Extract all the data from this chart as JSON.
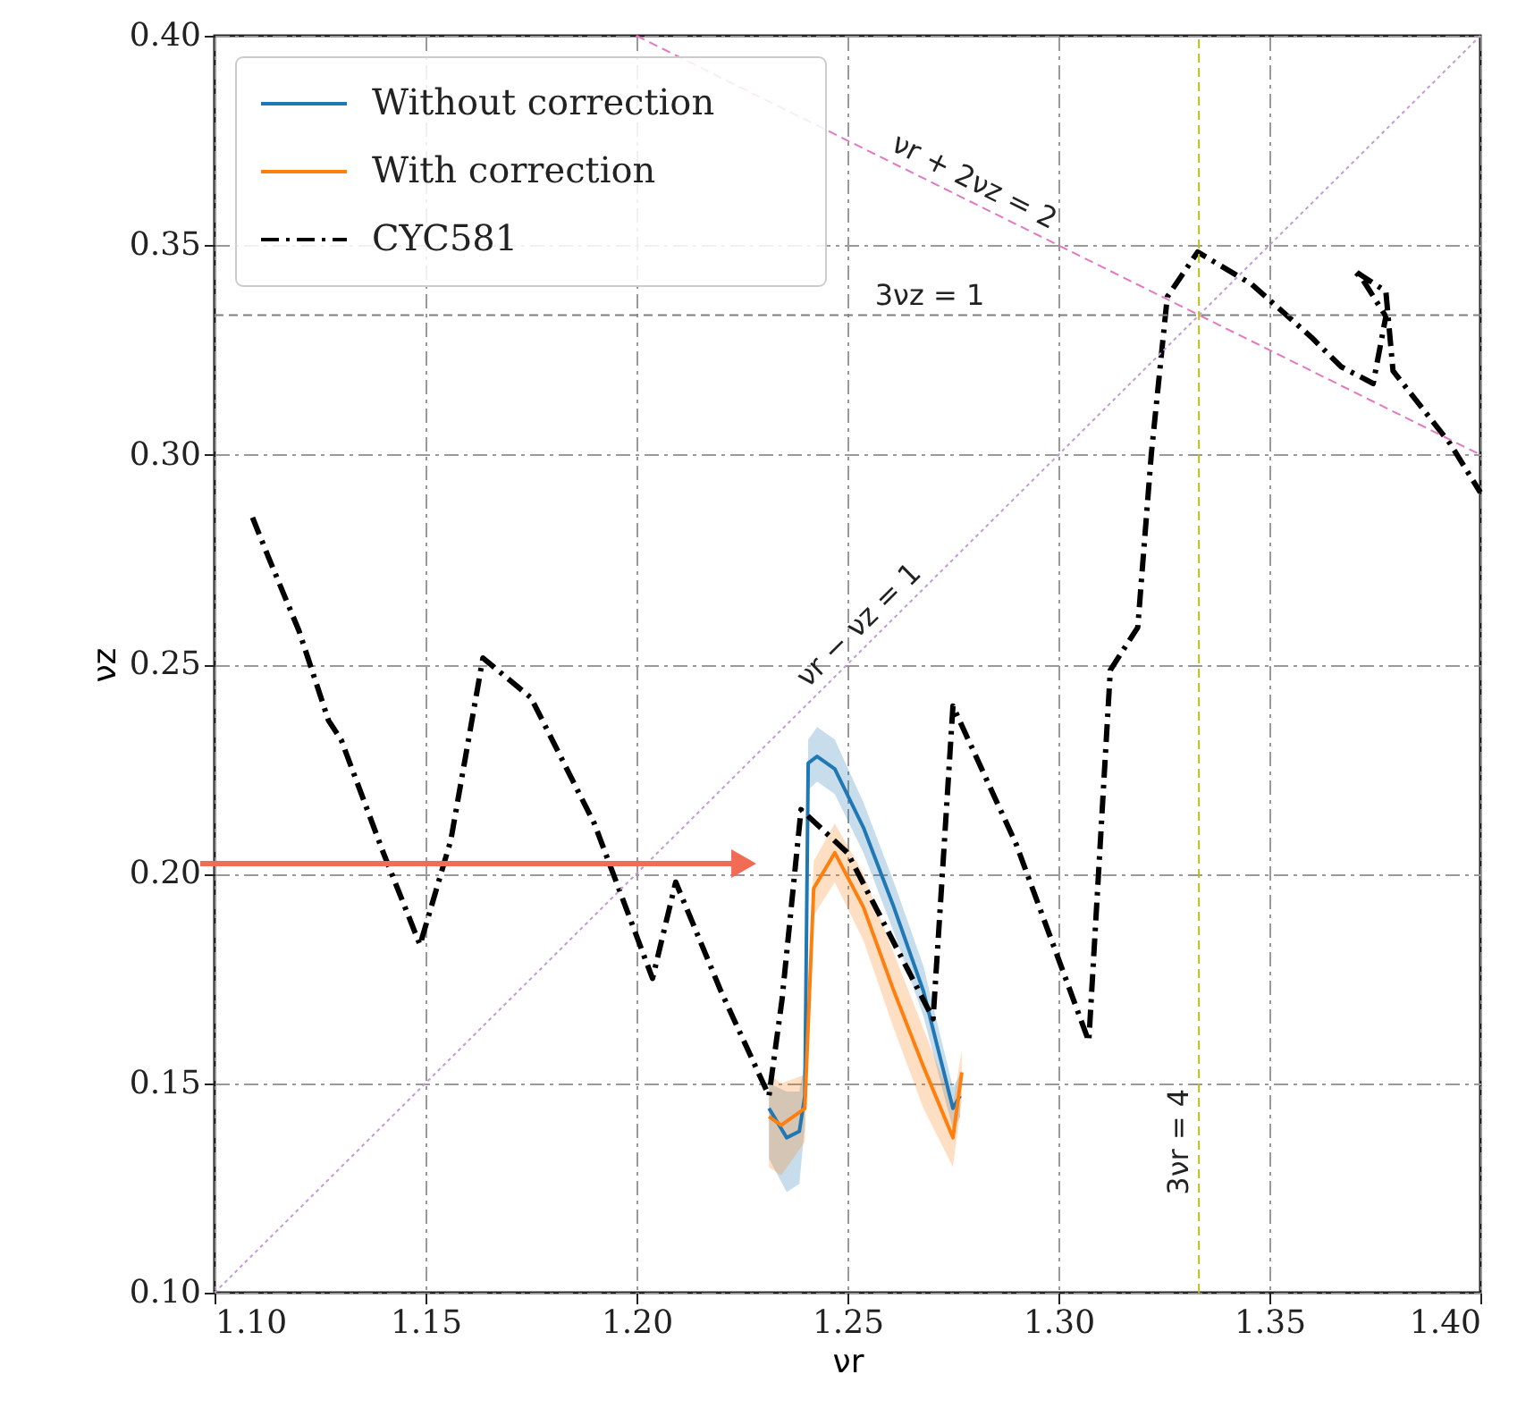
{
  "chart_data": {
    "type": "line",
    "xlabel": "νr",
    "ylabel": "νz",
    "xlim": [
      1.1,
      1.4
    ],
    "ylim": [
      0.1,
      0.4
    ],
    "xticks": [
      {
        "value": 1.1,
        "label": "1.10"
      },
      {
        "value": 1.15,
        "label": "1.15"
      },
      {
        "value": 1.2,
        "label": "1.20"
      },
      {
        "value": 1.25,
        "label": "1.25"
      },
      {
        "value": 1.3,
        "label": "1.30"
      },
      {
        "value": 1.35,
        "label": "1.35"
      },
      {
        "value": 1.4,
        "label": "1.40"
      }
    ],
    "yticks": [
      {
        "value": 0.1,
        "label": "0.10"
      },
      {
        "value": 0.15,
        "label": "0.15"
      },
      {
        "value": 0.2,
        "label": "0.20"
      },
      {
        "value": 0.25,
        "label": "0.25"
      },
      {
        "value": 0.3,
        "label": "0.30"
      },
      {
        "value": 0.35,
        "label": "0.35"
      },
      {
        "value": 0.4,
        "label": "0.40"
      }
    ],
    "grid": true,
    "legend": "top left",
    "series": [
      {
        "name": "Without correction",
        "color": "#1f77b4",
        "line_style": "solid",
        "x": [
          1.2314,
          1.2356,
          1.2386,
          1.2399,
          1.2407,
          1.2428,
          1.247,
          1.2538,
          1.261,
          1.268,
          1.275,
          1.2767
        ],
        "values": [
          0.144,
          0.137,
          0.1385,
          0.147,
          0.2264,
          0.228,
          0.225,
          0.211,
          0.192,
          0.172,
          0.144,
          0.147
        ],
        "lower": [
          0.132,
          0.124,
          0.126,
          0.14,
          0.22,
          0.222,
          0.219,
          0.205,
          0.186,
          0.166,
          0.139,
          0.142
        ],
        "upper": [
          0.15,
          0.148,
          0.148,
          0.155,
          0.232,
          0.235,
          0.232,
          0.217,
          0.198,
          0.178,
          0.149,
          0.152
        ]
      },
      {
        "name": "With correction",
        "color": "#ff7f0e",
        "line_style": "solid",
        "x": [
          1.2314,
          1.2343,
          1.2399,
          1.242,
          1.247,
          1.2538,
          1.261,
          1.268,
          1.275,
          1.2771
        ],
        "values": [
          0.142,
          0.14,
          0.144,
          0.1965,
          0.205,
          0.192,
          0.172,
          0.154,
          0.137,
          0.1526
        ],
        "lower": [
          0.13,
          0.128,
          0.136,
          0.19,
          0.198,
          0.184,
          0.163,
          0.144,
          0.13,
          0.146
        ],
        "upper": [
          0.152,
          0.15,
          0.152,
          0.203,
          0.212,
          0.2,
          0.181,
          0.163,
          0.145,
          0.158
        ]
      },
      {
        "name": "CYC581",
        "color": "#000000",
        "line_style": "dashdot",
        "x": [
          1.109,
          1.113,
          1.12,
          1.127,
          1.13,
          1.14,
          1.1487,
          1.156,
          1.1636,
          1.175,
          1.19,
          1.2038,
          1.2093,
          1.22,
          1.2314,
          1.2345,
          1.239,
          1.25,
          1.2703,
          1.2725,
          1.275,
          1.29,
          1.3072,
          1.3095,
          1.3123,
          1.3188,
          1.322,
          1.3258,
          1.333,
          1.3458,
          1.36,
          1.367,
          1.3746,
          1.3776,
          1.372,
          1.37,
          1.3776,
          1.3793,
          1.3928,
          1.4
        ],
        "values": [
          0.285,
          0.275,
          0.258,
          0.2366,
          0.232,
          0.205,
          0.183,
          0.208,
          0.2515,
          0.242,
          0.212,
          0.175,
          0.198,
          0.172,
          0.147,
          0.17,
          0.2153,
          0.205,
          0.1654,
          0.2,
          0.24,
          0.207,
          0.16,
          0.2,
          0.2486,
          0.2588,
          0.3,
          0.3377,
          0.3484,
          0.3407,
          0.328,
          0.321,
          0.317,
          0.333,
          0.342,
          0.344,
          0.339,
          0.32,
          0.3027,
          0.291
        ]
      },
      {
        "name": "νr − νz = 1",
        "color": "#c39bd3",
        "line_style": "dotted",
        "x": [
          1.1,
          1.4
        ],
        "values": [
          0.1,
          0.4
        ]
      },
      {
        "name": "νr + 2νz = 2",
        "color": "#e377c2",
        "line_style": "dashed",
        "x": [
          1.2,
          1.4
        ],
        "values": [
          0.4,
          0.3
        ]
      },
      {
        "name": "3νz = 1",
        "color": "#808080",
        "line_style": "dashed",
        "x": [
          1.1,
          1.4
        ],
        "values": [
          0.3333,
          0.3333
        ]
      },
      {
        "name": "3νr = 4",
        "color": "#bcbd22",
        "line_style": "dashed",
        "x": [
          1.3333,
          1.3333
        ],
        "values": [
          0.1,
          0.4
        ]
      }
    ]
  }
}
